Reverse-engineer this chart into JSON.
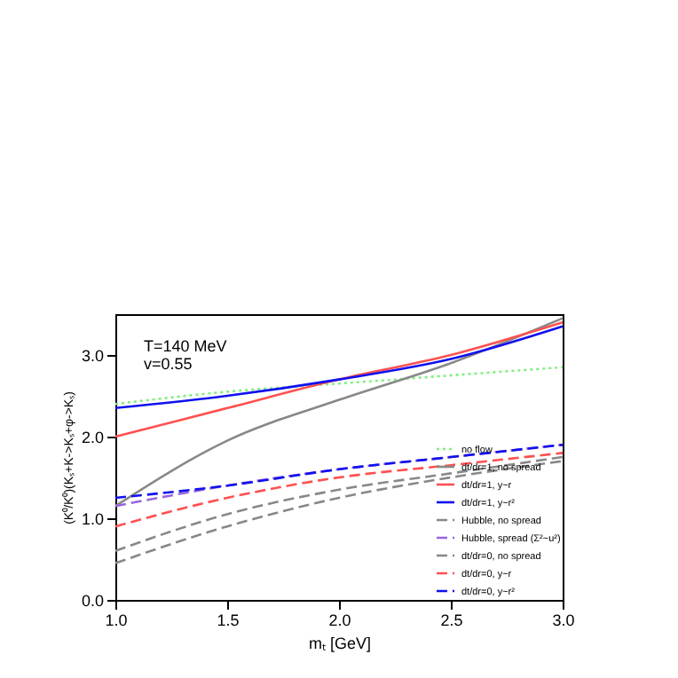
{
  "chart_data": {
    "type": "line",
    "xlabel": "mₜ [GeV]",
    "ylabel": "(K⁰/K⁰)(Kₛ+K->Kₛ+φ->Kₛ)",
    "annotations": [
      "T=140 MeV",
      "v=0.55"
    ],
    "x": [
      1.0,
      1.5,
      2.0,
      2.5,
      3.0
    ],
    "xlim": [
      1.0,
      3.0
    ],
    "ylim": [
      0,
      3.5
    ],
    "xticks": [
      {
        "value": 1,
        "label": "1.0"
      },
      1.5,
      {
        "value": 2,
        "label": "2.0"
      },
      2.5,
      {
        "value": 3,
        "label": "3.0"
      }
    ],
    "yticks": [
      {
        "value": 0,
        "label": "0.0"
      },
      {
        "value": 1,
        "label": "1.0"
      },
      {
        "value": 2,
        "label": "2.0"
      },
      {
        "value": 3,
        "label": "3.0"
      }
    ],
    "grid": false,
    "legend": "bottom right",
    "series": [
      {
        "name": "no flow",
        "color": "#80ee80",
        "line_style": "dotted",
        "values": [
          2.4,
          2.55,
          2.65,
          2.75,
          2.85
        ]
      },
      {
        "name": "dt/dr=1, no spread",
        "color": "#888888",
        "line_style": "solid",
        "values": [
          1.15,
          1.95,
          2.45,
          2.9,
          3.45
        ]
      },
      {
        "name": "dt/dr=1, y~r",
        "color": "#ff5050",
        "line_style": "solid",
        "values": [
          2.0,
          2.35,
          2.7,
          3.0,
          3.4
        ]
      },
      {
        "name": "dt/dr=1, y~r²",
        "color": "#1010ee",
        "line_style": "solid",
        "values": [
          2.35,
          2.5,
          2.7,
          2.95,
          3.35
        ]
      },
      {
        "name": "Hubble, no spread",
        "color": "#888888",
        "line_style": "dashed",
        "values": [
          0.6,
          1.05,
          1.35,
          1.55,
          1.75
        ]
      },
      {
        "name": "Hubble, spread (Σ²~u²)",
        "color": "#9966dd",
        "line_style": "dashed",
        "values": [
          1.15,
          1.4,
          1.6,
          1.75,
          1.9
        ]
      },
      {
        "name": "dt/dr=0, no spread",
        "color": "#888888",
        "line_style": "dashed",
        "values": [
          0.45,
          0.9,
          1.25,
          1.5,
          1.7
        ]
      },
      {
        "name": "dt/dr=0, y~r",
        "color": "#ff5050",
        "line_style": "dashed",
        "values": [
          0.9,
          1.25,
          1.5,
          1.65,
          1.8
        ]
      },
      {
        "name": "dt/dr=0, y~r²",
        "color": "#1010ee",
        "line_style": "dashed",
        "values": [
          1.25,
          1.4,
          1.6,
          1.75,
          1.9
        ]
      }
    ]
  }
}
